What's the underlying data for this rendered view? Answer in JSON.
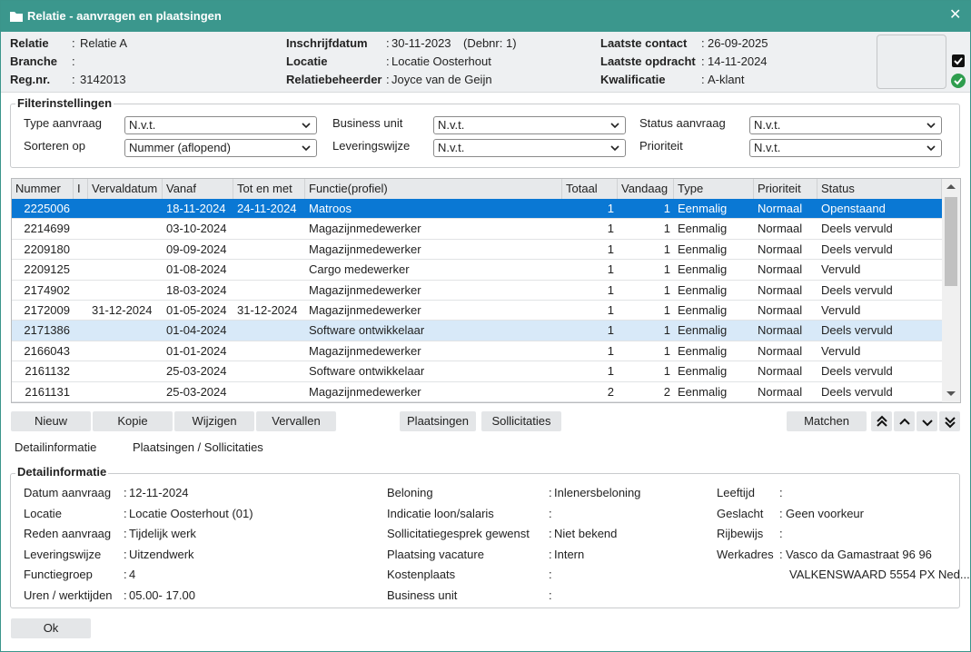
{
  "window": {
    "title": "Relatie - aanvragen en plaatsingen",
    "close": "✕"
  },
  "separator": ":",
  "header": {
    "columns": [
      [
        {
          "label": "Relatie",
          "value": "Relatie A"
        },
        {
          "label": "Branche"
        },
        {
          "label": "Reg.nr.",
          "value": "3142013"
        }
      ],
      [
        {
          "label": "Inschrijfdatum",
          "value": "30-11-2023",
          "extra": "(Debnr: 1)"
        },
        {
          "label": "Locatie",
          "value": "Locatie Oosterhout"
        },
        {
          "label": "Relatiebeheerder",
          "value": "Joyce van de Geijn"
        }
      ],
      [
        {
          "label": "Laatste contact",
          "value": "26-09-2025"
        },
        {
          "label": "Laatste opdracht",
          "value": "14-11-2024"
        },
        {
          "label": "Kwalificatie",
          "value": "A-klant"
        }
      ]
    ]
  },
  "filter": {
    "title": "Filterinstellingen",
    "fields": [
      {
        "label": "Type aanvraag",
        "value": "N.v.t."
      },
      {
        "label": "Business unit",
        "value": "N.v.t."
      },
      {
        "label": "Status aanvraag",
        "value": "N.v.t."
      },
      {
        "label": "Sorteren op",
        "value": "Nummer (aflopend)"
      },
      {
        "label": "Leveringswijze",
        "value": "N.v.t."
      },
      {
        "label": "Prioriteit",
        "value": "N.v.t."
      }
    ]
  },
  "table": {
    "columns": [
      "Nummer",
      "I",
      "Vervaldatum",
      "Vanaf",
      "Tot en met",
      "Functie(profiel)",
      "Totaal",
      "Vandaag",
      "Type",
      "Prioriteit",
      "Status"
    ],
    "selected_row": 0,
    "highlighted_row": 6,
    "rows": [
      [
        "2225006",
        null,
        null,
        "18-11-2024",
        "24-11-2024",
        "Matroos",
        "1",
        "1",
        "Eenmalig",
        "Normaal",
        "Openstaand"
      ],
      [
        "2214699",
        null,
        null,
        "03-10-2024",
        null,
        "Magazijnmedewerker",
        "1",
        "1",
        "Eenmalig",
        "Normaal",
        "Deels vervuld"
      ],
      [
        "2209180",
        null,
        null,
        "09-09-2024",
        null,
        "Magazijnmedewerker",
        "1",
        "1",
        "Eenmalig",
        "Normaal",
        "Deels vervuld"
      ],
      [
        "2209125",
        null,
        null,
        "01-08-2024",
        null,
        "Cargo medewerker",
        "1",
        "1",
        "Eenmalig",
        "Normaal",
        "Vervuld"
      ],
      [
        "2174902",
        null,
        null,
        "18-03-2024",
        null,
        "Magazijnmedewerker",
        "1",
        "1",
        "Eenmalig",
        "Normaal",
        "Deels vervuld"
      ],
      [
        "2172009",
        null,
        "31-12-2024",
        "01-05-2024",
        "31-12-2024",
        "Magazijnmedewerker",
        "1",
        "1",
        "Eenmalig",
        "Normaal",
        "Vervuld"
      ],
      [
        "2171386",
        null,
        null,
        "01-04-2024",
        null,
        "Software ontwikkelaar",
        "1",
        "1",
        "Eenmalig",
        "Normaal",
        "Deels vervuld"
      ],
      [
        "2166043",
        null,
        null,
        "01-01-2024",
        null,
        "Magazijnmedewerker",
        "1",
        "1",
        "Eenmalig",
        "Normaal",
        "Vervuld"
      ],
      [
        "2161132",
        null,
        null,
        "25-03-2024",
        null,
        "Software ontwikkelaar",
        "1",
        "1",
        "Eenmalig",
        "Normaal",
        "Deels vervuld"
      ],
      [
        "2161131",
        null,
        null,
        "25-03-2024",
        null,
        "Magazijnmedewerker",
        "2",
        "2",
        "Eenmalig",
        "Normaal",
        "Deels vervuld"
      ]
    ]
  },
  "buttons": {
    "left": [
      "Nieuw",
      "Kopie",
      "Wijzigen",
      "Vervallen"
    ],
    "middle": [
      "Plaatsingen",
      "Sollicitaties"
    ],
    "right": [
      "Matchen"
    ]
  },
  "tabs": [
    "Detailinformatie",
    "Plaatsingen / Sollicitaties"
  ],
  "detail": {
    "title": "Detailinformatie",
    "columns": [
      [
        {
          "label": "Datum aanvraag",
          "value": "12-11-2024"
        },
        {
          "label": "Locatie",
          "value": "Locatie Oosterhout (01)"
        },
        {
          "label": "Reden aanvraag",
          "value": "Tijdelijk werk"
        },
        {
          "label": "Leveringswijze",
          "value": "Uitzendwerk"
        },
        {
          "label": "Functiegroep",
          "value": "4"
        },
        {
          "label": "Uren / werktijden",
          "value": "05.00- 17.00"
        }
      ],
      [
        {
          "label": "Beloning",
          "value": "Inlenersbeloning"
        },
        {
          "label": "Indicatie loon/salaris"
        },
        {
          "label": "Sollicitatiegesprek gewenst",
          "value": "Niet bekend"
        },
        {
          "label": "Plaatsing vacature",
          "value": "Intern"
        },
        {
          "label": "Kostenplaats"
        },
        {
          "label": "Business unit"
        }
      ],
      [
        {
          "label": "Leeftijd"
        },
        {
          "label": "Geslacht",
          "value": "Geen voorkeur"
        },
        {
          "label": "Rijbewijs"
        },
        {
          "label": "Werkadres",
          "lines": [
            "Vasco da Gamastraat 96 96",
            "VALKENSWAARD 5554 PX Ned..."
          ]
        }
      ]
    ]
  },
  "ok": "Ok"
}
